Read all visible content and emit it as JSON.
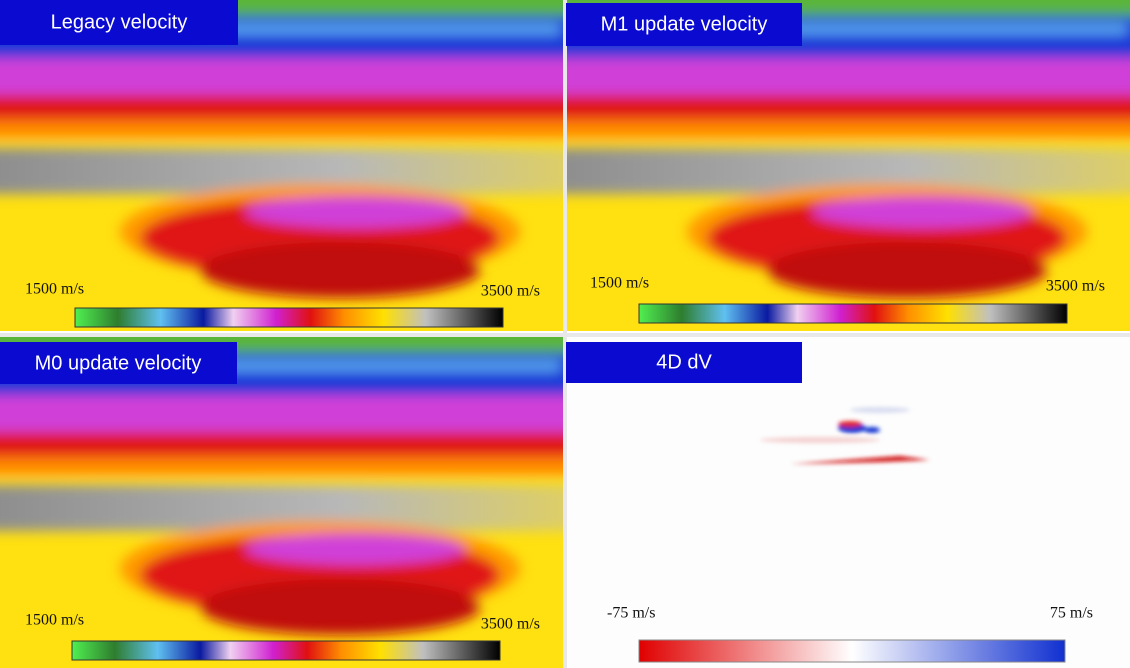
{
  "panels": [
    {
      "title": "Legacy velocity",
      "min_label": "1500 m/s",
      "max_label": "3500 m/s"
    },
    {
      "title": "M1 update velocity",
      "min_label": "1500 m/s",
      "max_label": "3500 m/s"
    },
    {
      "title": "M0 update velocity",
      "min_label": "1500 m/s",
      "max_label": "3500 m/s"
    },
    {
      "title": "4D dV",
      "min_label": "-75 m/s",
      "max_label": "75 m/s"
    }
  ]
}
